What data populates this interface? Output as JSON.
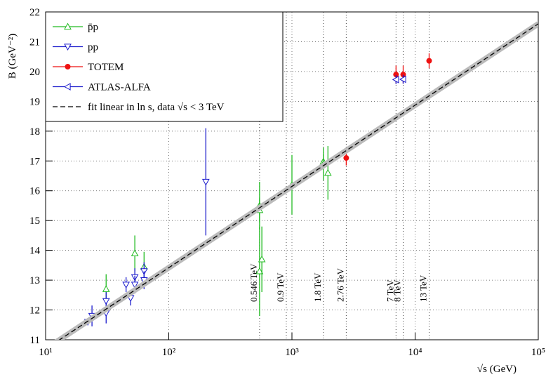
{
  "chart_data": {
    "type": "scatter",
    "xlabel": "√s  (GeV)",
    "ylabel": "B  (GeV⁻²)",
    "xscale": "log",
    "grid": true,
    "legend": "upper left",
    "xlim": [
      10,
      100000
    ],
    "xticks": [
      {
        "value": 10,
        "label": "10¹"
      },
      {
        "value": 100,
        "label": "10²"
      },
      {
        "value": 1000,
        "label": "10³"
      },
      {
        "value": 10000,
        "label": "10⁴"
      },
      {
        "value": 100000,
        "label": "10⁵"
      }
    ],
    "ylim": [
      11,
      22
    ],
    "yticks": [
      11,
      12,
      13,
      14,
      15,
      16,
      17,
      18,
      19,
      20,
      21,
      22
    ],
    "series": [
      {
        "name": "p̄p",
        "color": "#22bb22",
        "marker": "triangle-up",
        "x": [
          31,
          53,
          63,
          546,
          546,
          546,
          570,
          1000,
          1800,
          1800,
          1960
        ],
        "values": [
          12.7,
          13.9,
          13.45,
          15.5,
          15.35,
          13.3,
          13.7,
          16.2,
          16.98,
          16.9,
          16.6
        ],
        "errors": [
          0.5,
          0.6,
          0.5,
          0.8,
          0.4,
          1.5,
          1.1,
          1.0,
          0.25,
          0.55,
          0.9
        ]
      },
      {
        "name": "pp",
        "color": "#1a1acc",
        "marker": "triangle-down",
        "x": [
          22,
          23.8,
          31,
          31,
          45,
          49,
          53,
          53,
          63,
          63,
          200
        ],
        "values": [
          11.6,
          11.8,
          12.3,
          11.9,
          12.85,
          12.4,
          13.1,
          12.85,
          13.3,
          13.0,
          16.3
        ],
        "errors": [
          0.1,
          0.35,
          0.3,
          0.35,
          0.25,
          0.25,
          0.3,
          0.3,
          0.3,
          0.3,
          1.8
        ]
      },
      {
        "name": "TOTEM",
        "color": "#ee1111",
        "marker": "circle",
        "x": [
          2760,
          7000,
          8000,
          13000
        ],
        "values": [
          17.1,
          19.9,
          19.9,
          20.36
        ],
        "errors": [
          0.25,
          0.3,
          0.3,
          0.25
        ]
      },
      {
        "name": "ATLAS-ALFA",
        "color": "#1a1acc",
        "marker": "triangle-left",
        "x": [
          7000,
          8000
        ],
        "values": [
          19.73,
          19.74
        ],
        "errors": [
          0.15,
          0.15
        ]
      },
      {
        "name": "fit linear in ln s, data √s < 3 TeV",
        "color": "#000000",
        "marker": "dashed-line",
        "x": [
          10,
          100000
        ],
        "values": [
          10.69,
          21.6
        ]
      }
    ],
    "annotations": [
      {
        "x": 546,
        "label": "0.546 TeV"
      },
      {
        "x": 900,
        "label": "0.9 TeV"
      },
      {
        "x": 1800,
        "label": "1.8 TeV"
      },
      {
        "x": 2760,
        "label": "2.76 TeV"
      },
      {
        "x": 7000,
        "label": "7 TeV"
      },
      {
        "x": 8000,
        "label": "8 TeV"
      },
      {
        "x": 13000,
        "label": "13 TeV"
      }
    ]
  }
}
